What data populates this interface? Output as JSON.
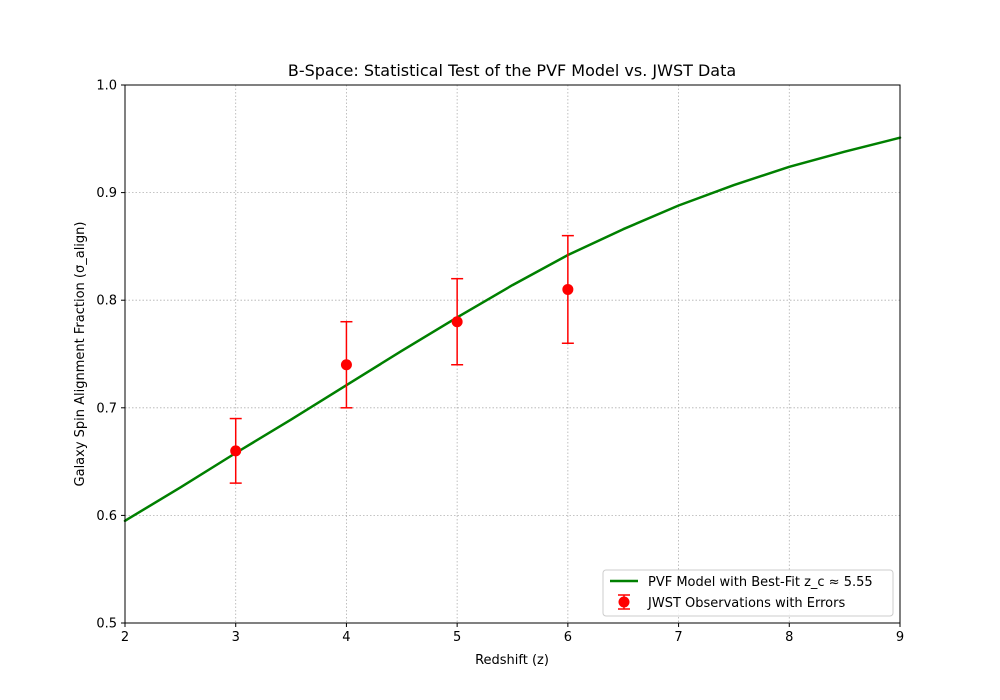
{
  "chart_data": {
    "type": "line",
    "title": "B-Space: Statistical Test of the PVF Model vs. JWST Data",
    "xlabel": "Redshift (z)",
    "ylabel": "Galaxy Spin Alignment Fraction (σ_align)",
    "xlim": [
      2,
      9
    ],
    "ylim": [
      0.5,
      1.0
    ],
    "xticks": [
      2,
      3,
      4,
      5,
      6,
      7,
      8,
      9
    ],
    "yticks": [
      0.5,
      0.6,
      0.7,
      0.8,
      0.9,
      1.0
    ],
    "xtick_labels": [
      "2",
      "3",
      "4",
      "5",
      "6",
      "7",
      "8",
      "9"
    ],
    "ytick_labels": [
      "0.5",
      "0.6",
      "0.7",
      "0.8",
      "0.9",
      "1.0"
    ],
    "grid": true,
    "legend_position": "lower-right",
    "series": [
      {
        "name": "PVF Model with Best-Fit z_c ≈ 5.55",
        "kind": "line",
        "color": "#008000",
        "x": [
          2.0,
          2.5,
          3.0,
          3.5,
          4.0,
          4.5,
          5.0,
          5.5,
          6.0,
          6.5,
          7.0,
          7.5,
          8.0,
          8.5,
          9.0
        ],
        "y": [
          0.595,
          0.626,
          0.658,
          0.689,
          0.721,
          0.753,
          0.784,
          0.814,
          0.842,
          0.866,
          0.888,
          0.907,
          0.924,
          0.938,
          0.951
        ]
      },
      {
        "name": "JWST Observations with Errors",
        "kind": "errorbar",
        "color": "#ff0000",
        "x": [
          3,
          4,
          5,
          6
        ],
        "y": [
          0.66,
          0.74,
          0.78,
          0.81
        ],
        "yerr": [
          0.03,
          0.04,
          0.04,
          0.05
        ]
      }
    ]
  }
}
